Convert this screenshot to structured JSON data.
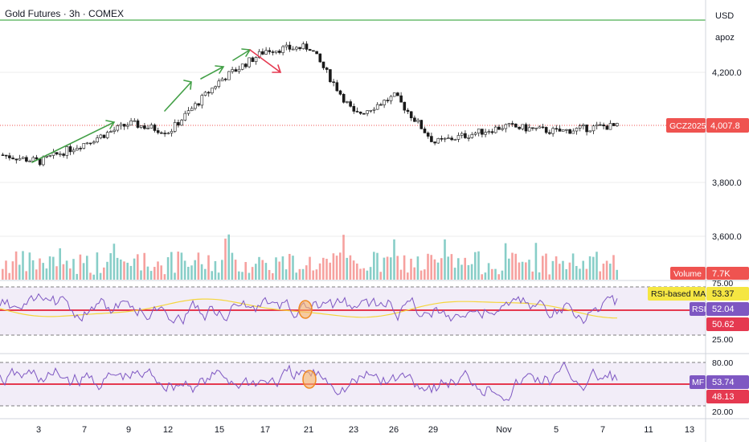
{
  "header": {
    "title": "Gold Futures · 3h · COMEX"
  },
  "price_scale": {
    "currency": "USD",
    "account": "apoz",
    "ticks": [
      "4,200.0",
      "3,800.0",
      "3,600.0"
    ],
    "symbol_badge": "GCZ2025",
    "last_price": "4,007.8"
  },
  "volume_pane": {
    "label": "Volume",
    "value": "7.7K"
  },
  "rsi_pane": {
    "ma_label": "RSI-based MA",
    "ma_value": "53.37",
    "rsi_label": "RSI",
    "rsi_value": "52.04",
    "second_value": "50.62",
    "level_high": "75.00",
    "level_low": "25.00"
  },
  "mf_pane": {
    "label": "MF",
    "value": "53.74",
    "second_value": "48.13",
    "level_high": "80.00",
    "level_low": "20.00"
  },
  "time_axis": {
    "ticks": [
      "3",
      "7",
      "9",
      "12",
      "15",
      "17",
      "21",
      "23",
      "26",
      "29",
      "Nov",
      "5",
      "7",
      "11",
      "13"
    ]
  },
  "colors": {
    "up": "#26a69a",
    "down": "#ef5350",
    "candle": "#1a1a1a",
    "rsi_line": "#7e57c2",
    "ma_line": "#f5d63c",
    "level_red": "#e53950",
    "resistance": "#4caf50",
    "arrow_up": "#43a047",
    "arrow_down": "#e53950",
    "marker": "#f08a24"
  },
  "chart_data": {
    "type": "line",
    "title": "Gold Futures · 3h · COMEX",
    "x": [
      "3",
      "7",
      "9",
      "12",
      "15",
      "17",
      "21",
      "23",
      "26",
      "29",
      "Nov",
      "5",
      "7",
      "11",
      "13"
    ],
    "series": [
      {
        "name": "GCZ2025",
        "values": [
          3880,
          3950,
          4020,
          3990,
          4180,
          4290,
          4300,
          4050,
          4120,
          3950,
          4010,
          3990,
          4010,
          null,
          null
        ]
      }
    ],
    "ylim": [
      3500,
      4420
    ]
  }
}
